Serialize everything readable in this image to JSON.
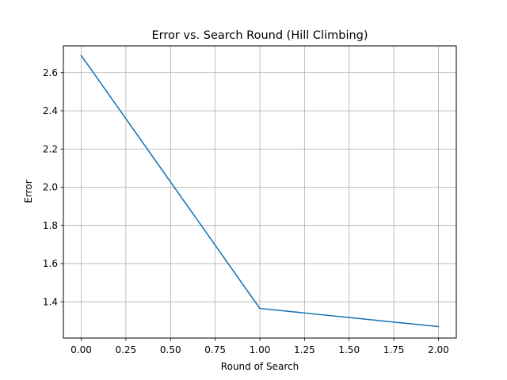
{
  "chart_data": {
    "type": "line",
    "title": "Error vs. Search Round (Hill Climbing)",
    "xlabel": "Round of Search",
    "ylabel": "Error",
    "x": [
      0.0,
      1.0,
      2.0
    ],
    "series": [
      {
        "values": [
          2.69,
          1.365,
          1.27
        ],
        "color": "#1f77b4"
      }
    ],
    "xlim": [
      -0.1,
      2.1
    ],
    "ylim": [
      1.21,
      2.74
    ],
    "xticks": [
      0.0,
      0.25,
      0.5,
      0.75,
      1.0,
      1.25,
      1.5,
      1.75,
      2.0
    ],
    "xtick_labels": [
      "0.00",
      "0.25",
      "0.50",
      "0.75",
      "1.00",
      "1.25",
      "1.50",
      "1.75",
      "2.00"
    ],
    "yticks": [
      1.4,
      1.6,
      1.8,
      2.0,
      2.2,
      2.4,
      2.6
    ],
    "ytick_labels": [
      "1.4",
      "1.6",
      "1.8",
      "2.0",
      "2.2",
      "2.4",
      "2.6"
    ],
    "grid": true,
    "grid_color": "#b0b0b0",
    "legend": "none"
  }
}
